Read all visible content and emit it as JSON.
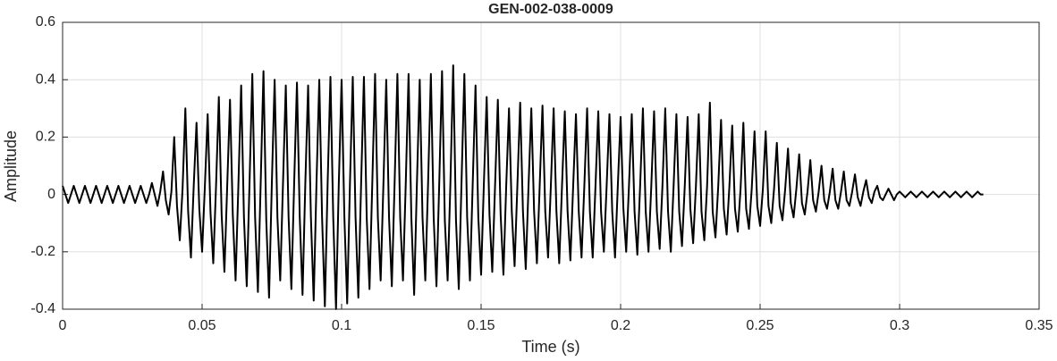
{
  "chart_data": {
    "type": "line",
    "title": "GEN-002-038-0009",
    "xlabel": "Time (s)",
    "ylabel": "Amplitude",
    "color": "#000000",
    "grid": true,
    "xlim": [
      0,
      0.35
    ],
    "xticks": [
      0,
      0.05,
      0.1,
      0.15,
      0.2,
      0.25,
      0.3,
      0.35
    ],
    "ylim": [
      -0.4,
      0.6
    ],
    "yticks": [
      -0.4,
      -0.2,
      0,
      0.2,
      0.4,
      0.6
    ],
    "x": [
      0,
      0.001,
      0.002,
      0.003,
      0.004,
      0.005,
      0.006,
      0.007,
      0.008,
      0.009,
      0.01,
      0.011,
      0.012,
      0.013,
      0.014,
      0.015,
      0.016,
      0.017,
      0.018,
      0.019,
      0.02,
      0.021,
      0.022,
      0.023,
      0.024,
      0.025,
      0.026,
      0.027,
      0.028,
      0.029,
      0.03,
      0.031,
      0.032,
      0.033,
      0.034,
      0.035,
      0.036,
      0.037,
      0.038,
      0.039,
      0.04,
      0.041,
      0.042,
      0.043,
      0.044,
      0.045,
      0.046,
      0.047,
      0.048,
      0.049,
      0.05,
      0.051,
      0.052,
      0.053,
      0.054,
      0.055,
      0.056,
      0.057,
      0.058,
      0.059,
      0.06,
      0.061,
      0.062,
      0.063,
      0.064,
      0.065,
      0.066,
      0.067,
      0.068,
      0.069,
      0.07,
      0.071,
      0.072,
      0.073,
      0.074,
      0.075,
      0.076,
      0.077,
      0.078,
      0.079,
      0.08,
      0.081,
      0.082,
      0.083,
      0.084,
      0.085,
      0.086,
      0.087,
      0.088,
      0.089,
      0.09,
      0.091,
      0.092,
      0.093,
      0.094,
      0.095,
      0.096,
      0.097,
      0.098,
      0.099,
      0.1,
      0.101,
      0.102,
      0.103,
      0.104,
      0.105,
      0.106,
      0.107,
      0.108,
      0.109,
      0.11,
      0.111,
      0.112,
      0.113,
      0.114,
      0.115,
      0.116,
      0.117,
      0.118,
      0.119,
      0.12,
      0.121,
      0.122,
      0.123,
      0.124,
      0.125,
      0.126,
      0.127,
      0.128,
      0.129,
      0.13,
      0.131,
      0.132,
      0.133,
      0.134,
      0.135,
      0.136,
      0.137,
      0.138,
      0.139,
      0.14,
      0.141,
      0.142,
      0.143,
      0.144,
      0.145,
      0.146,
      0.147,
      0.148,
      0.149,
      0.15,
      0.151,
      0.152,
      0.153,
      0.154,
      0.155,
      0.156,
      0.157,
      0.158,
      0.159,
      0.16,
      0.161,
      0.162,
      0.163,
      0.164,
      0.165,
      0.166,
      0.167,
      0.168,
      0.169,
      0.17,
      0.171,
      0.172,
      0.173,
      0.174,
      0.175,
      0.176,
      0.177,
      0.178,
      0.179,
      0.18,
      0.181,
      0.182,
      0.183,
      0.184,
      0.185,
      0.186,
      0.187,
      0.188,
      0.189,
      0.19,
      0.191,
      0.192,
      0.193,
      0.194,
      0.195,
      0.196,
      0.197,
      0.198,
      0.199,
      0.2,
      0.201,
      0.202,
      0.203,
      0.204,
      0.205,
      0.206,
      0.207,
      0.208,
      0.209,
      0.21,
      0.211,
      0.212,
      0.213,
      0.214,
      0.215,
      0.216,
      0.217,
      0.218,
      0.219,
      0.22,
      0.221,
      0.222,
      0.223,
      0.224,
      0.225,
      0.226,
      0.227,
      0.228,
      0.229,
      0.23,
      0.231,
      0.232,
      0.233,
      0.234,
      0.235,
      0.236,
      0.237,
      0.238,
      0.239,
      0.24,
      0.241,
      0.242,
      0.243,
      0.244,
      0.245,
      0.246,
      0.247,
      0.248,
      0.249,
      0.25,
      0.251,
      0.252,
      0.253,
      0.254,
      0.255,
      0.256,
      0.257,
      0.258,
      0.259,
      0.26,
      0.261,
      0.262,
      0.263,
      0.264,
      0.265,
      0.266,
      0.267,
      0.268,
      0.269,
      0.27,
      0.271,
      0.272,
      0.273,
      0.274,
      0.275,
      0.276,
      0.277,
      0.278,
      0.279,
      0.28,
      0.281,
      0.282,
      0.283,
      0.284,
      0.285,
      0.286,
      0.287,
      0.288,
      0.289,
      0.29,
      0.291,
      0.292,
      0.293,
      0.294,
      0.295,
      0.296,
      0.297,
      0.298,
      0.299,
      0.3,
      0.301,
      0.302,
      0.303,
      0.304,
      0.305,
      0.306,
      0.307,
      0.308,
      0.309,
      0.31,
      0.311,
      0.312,
      0.313,
      0.314,
      0.315,
      0.316,
      0.317,
      0.318,
      0.319,
      0.32,
      0.321,
      0.322,
      0.323,
      0.324,
      0.325,
      0.326,
      0.327,
      0.328,
      0.329,
      0.33
    ],
    "values": [
      0.03,
      0,
      -0.03,
      0,
      0.03,
      0,
      -0.03,
      0,
      0.03,
      0,
      -0.03,
      0,
      0.03,
      0,
      -0.03,
      0,
      0.03,
      0,
      -0.03,
      0,
      0.03,
      0,
      -0.03,
      0,
      0.03,
      0,
      -0.03,
      0,
      0.03,
      0,
      -0.03,
      0,
      0.04,
      0,
      -0.04,
      0.01,
      0.08,
      -0.02,
      -0.07,
      0.01,
      0.2,
      -0.04,
      -0.16,
      0.02,
      0.3,
      -0.06,
      -0.22,
      0.03,
      0.25,
      -0.05,
      -0.2,
      0.03,
      0.28,
      -0.06,
      -0.24,
      0.03,
      0.34,
      -0.07,
      -0.27,
      0.03,
      0.33,
      -0.07,
      -0.3,
      0.03,
      0.38,
      -0.08,
      -0.32,
      0.04,
      0.42,
      -0.08,
      -0.34,
      0.04,
      0.43,
      -0.09,
      -0.36,
      0.04,
      0.4,
      -0.08,
      -0.3,
      0.04,
      0.38,
      -0.08,
      -0.33,
      0.04,
      0.39,
      -0.08,
      -0.35,
      0.04,
      0.38,
      -0.08,
      -0.37,
      0.04,
      0.4,
      -0.08,
      -0.39,
      0.04,
      0.41,
      -0.08,
      -0.4,
      0.04,
      0.4,
      -0.08,
      -0.38,
      0.04,
      0.41,
      -0.08,
      -0.36,
      0.04,
      0.41,
      -0.08,
      -0.33,
      0.04,
      0.42,
      -0.08,
      -0.3,
      0.04,
      0.4,
      -0.08,
      -0.32,
      0.04,
      0.42,
      -0.08,
      -0.3,
      0.04,
      0.42,
      -0.08,
      -0.35,
      0.04,
      0.4,
      -0.08,
      -0.3,
      0.04,
      0.42,
      -0.08,
      -0.32,
      0.04,
      0.43,
      -0.09,
      -0.3,
      0.04,
      0.45,
      -0.09,
      -0.33,
      0.05,
      0.42,
      -0.08,
      -0.3,
      0.04,
      0.38,
      -0.08,
      -0.28,
      0.04,
      0.34,
      -0.07,
      -0.27,
      0.03,
      0.33,
      -0.07,
      -0.28,
      0.03,
      0.3,
      -0.06,
      -0.25,
      0.03,
      0.32,
      -0.06,
      -0.26,
      0.03,
      0.3,
      -0.06,
      -0.24,
      0.03,
      0.31,
      -0.06,
      -0.22,
      0.03,
      0.3,
      -0.06,
      -0.24,
      0.03,
      0.29,
      -0.06,
      -0.23,
      0.03,
      0.28,
      -0.06,
      -0.22,
      0.03,
      0.3,
      -0.06,
      -0.22,
      0.03,
      0.29,
      -0.06,
      -0.2,
      0.03,
      0.28,
      -0.06,
      -0.22,
      0.03,
      0.27,
      -0.05,
      -0.2,
      0.03,
      0.28,
      -0.06,
      -0.21,
      0.03,
      0.3,
      -0.06,
      -0.2,
      0.03,
      0.29,
      -0.06,
      -0.19,
      0.03,
      0.3,
      -0.06,
      -0.2,
      0.03,
      0.28,
      -0.06,
      -0.18,
      0.03,
      0.27,
      -0.05,
      -0.17,
      0.03,
      0.28,
      -0.06,
      -0.16,
      0.03,
      0.32,
      -0.06,
      -0.15,
      0.03,
      0.26,
      -0.05,
      -0.14,
      0.03,
      0.24,
      -0.05,
      -0.13,
      0.02,
      0.25,
      -0.05,
      -0.12,
      0.02,
      0.22,
      -0.04,
      -0.11,
      0.02,
      0.22,
      -0.04,
      -0.1,
      0.02,
      0.18,
      -0.04,
      -0.09,
      0.02,
      0.16,
      -0.03,
      -0.08,
      0.02,
      0.14,
      -0.03,
      -0.07,
      0.01,
      0.12,
      -0.02,
      -0.06,
      0.01,
      0.1,
      -0.02,
      -0.05,
      0.01,
      0.09,
      -0.02,
      -0.05,
      0.01,
      0.08,
      -0.02,
      -0.04,
      0.01,
      0.07,
      -0.01,
      -0.04,
      0.01,
      0.05,
      -0.01,
      -0.03,
      0.01,
      0.03,
      -0.01,
      -0.02,
      0,
      0.02,
      0,
      -0.02,
      0,
      0.01,
      0,
      -0.01,
      0,
      0.01,
      0,
      -0.01,
      0,
      0.01,
      0,
      -0.01,
      0,
      0.01,
      0,
      -0.01,
      0,
      0.01,
      0,
      -0.01,
      0,
      0.01,
      0,
      -0.01,
      0,
      0.01,
      0,
      -0.01,
      0,
      0.01,
      0,
      0
    ]
  }
}
